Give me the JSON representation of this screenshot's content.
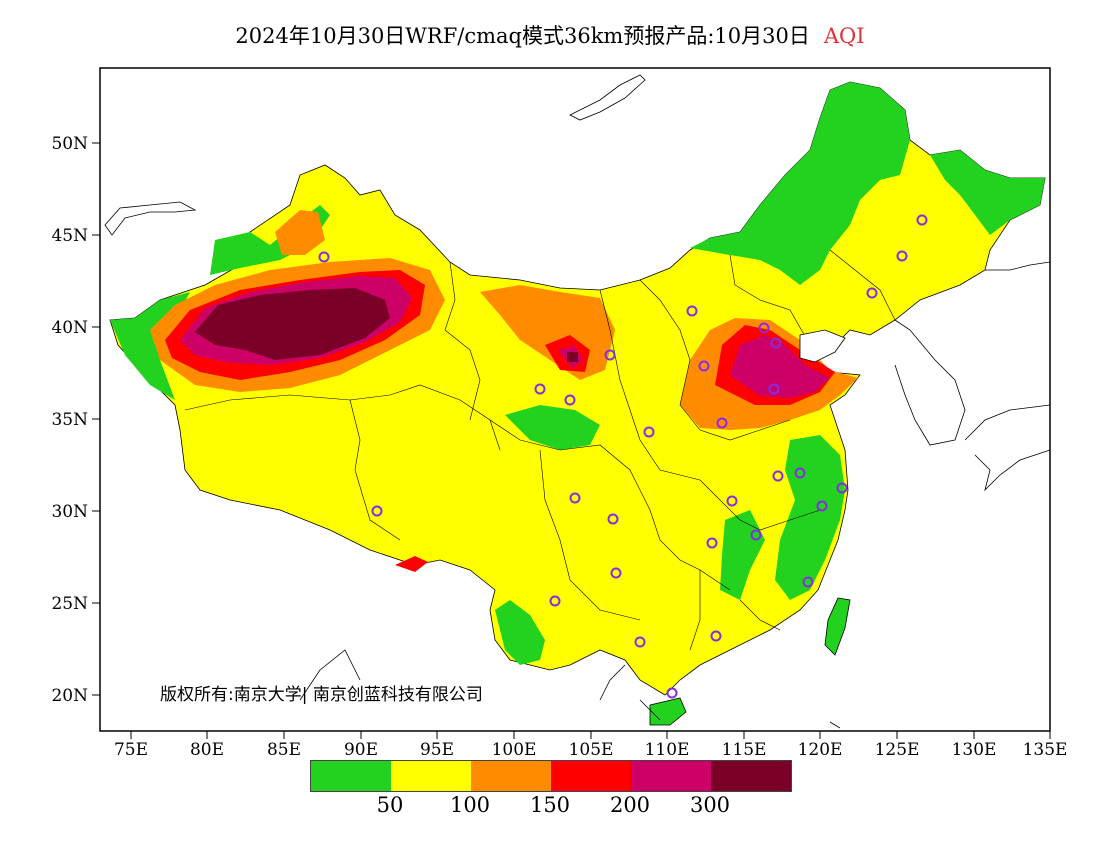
{
  "title": {
    "main": "2024年10月30日WRF/cmaq模式36km预报产品:10月30日",
    "highlight": "AQI",
    "highlight_color": "#e0303a"
  },
  "axes": {
    "lat_labels": [
      "50N",
      "45N",
      "40N",
      "35N",
      "30N",
      "25N",
      "20N"
    ],
    "lon_labels": [
      "75E",
      "80E",
      "85E",
      "90E",
      "95E",
      "100E",
      "105E",
      "110E",
      "115E",
      "120E",
      "125E",
      "130E",
      "135E"
    ]
  },
  "copyright": "版权所有:南京大学| 南京创蓝科技有限公司",
  "legend": {
    "colors": [
      "#22d21e",
      "#ffff00",
      "#ff8c00",
      "#ff0000",
      "#cc0066",
      "#7a0028"
    ],
    "labels": [
      "50",
      "100",
      "150",
      "200",
      "300"
    ]
  },
  "colors": {
    "good": "#22d21e",
    "moderate": "#ffff00",
    "unhealthy_sensitive": "#ff8c00",
    "unhealthy": "#ff0000",
    "very_unhealthy": "#cc0066",
    "hazardous": "#7a0028",
    "station_marker": "#8a2be2"
  }
}
